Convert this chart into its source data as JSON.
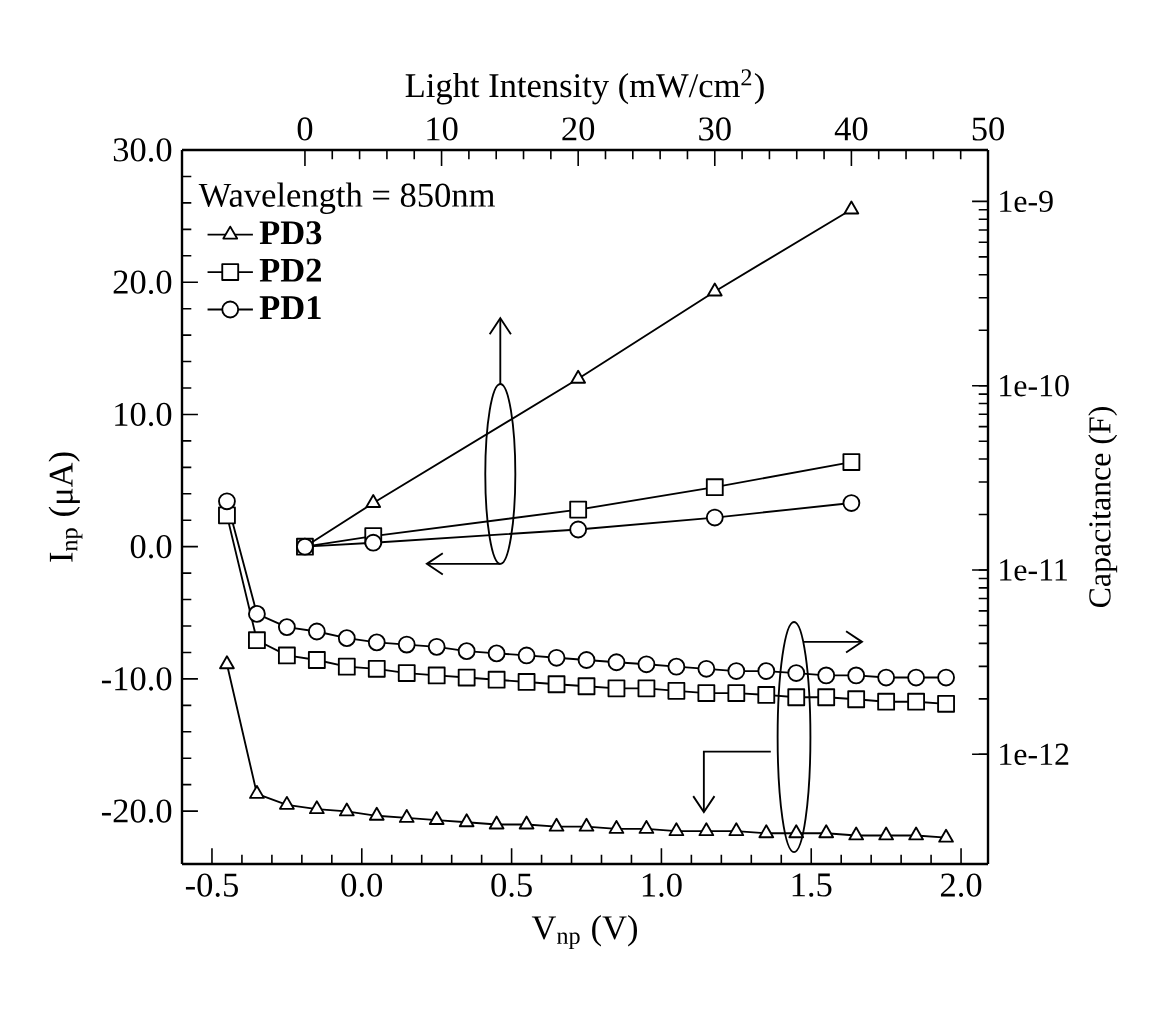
{
  "chart_data": {
    "type": "line",
    "x2label": "Light Intensity (mW/cm$^{2}$)",
    "xlabel": "V$_{np}$ (V)",
    "ylabel": "I$_{np}$ (μA)",
    "y2label": "Capacitance (F)",
    "legend_title": "Wavelength = 850nm",
    "legend": "top left",
    "line_style": "solid",
    "xlim": [
      -0.6,
      2.09
    ],
    "xticks": [
      {
        "value": -0.5,
        "label": "-0.5"
      },
      {
        "value": 0,
        "label": "0.0"
      },
      {
        "value": 0.5,
        "label": "0.5"
      },
      {
        "value": 1,
        "label": "1.0"
      },
      {
        "value": 1.5,
        "label": "1.5"
      },
      {
        "value": 2,
        "label": "2.0"
      }
    ],
    "x2lim": [
      -9,
      50
    ],
    "x2ticks": [
      0,
      10,
      20,
      30,
      40,
      50
    ],
    "ylim": [
      -24,
      30
    ],
    "yticks": [
      {
        "value": -20,
        "label": "-20.0"
      },
      {
        "value": -10,
        "label": "-10.0"
      },
      {
        "value": 0,
        "label": "0.0"
      },
      {
        "value": 10,
        "label": "10.0"
      },
      {
        "value": 20,
        "label": "20.0"
      },
      {
        "value": 30,
        "label": "30.0"
      }
    ],
    "log": "y2",
    "y2lim": [
      2.54e-13,
      1.9e-09
    ],
    "y2ticks": [
      {
        "value": 1e-12,
        "label": "1e-12"
      },
      {
        "value": 1e-11,
        "label": "1e-11"
      },
      {
        "value": 1e-10,
        "label": "1e-10"
      },
      {
        "value": 1e-09,
        "label": "1e-9"
      }
    ],
    "series": [
      {
        "name": "PD3",
        "color": "#000000",
        "marker": "triangle",
        "axis": "x2",
        "x": [
          0,
          5,
          20,
          30,
          40
        ],
        "values": [
          0,
          3.3,
          12.7,
          19.3,
          25.5
        ]
      },
      {
        "name": "PD2",
        "color": "#000000",
        "marker": "square",
        "axis": "x2",
        "x": [
          0,
          5,
          20,
          30,
          40
        ],
        "values": [
          0,
          0.8,
          2.8,
          4.5,
          6.4
        ]
      },
      {
        "name": "PD1",
        "color": "#000000",
        "marker": "circle",
        "axis": "x2",
        "x": [
          0,
          5,
          20,
          30,
          40
        ],
        "values": [
          0,
          0.3,
          1.3,
          2.2,
          3.3
        ]
      },
      {
        "color": "#000000",
        "marker": "triangle",
        "axis": "y2",
        "x": [
          -0.45,
          -0.35,
          -0.25,
          -0.15,
          -0.05,
          0.05,
          0.15,
          0.25,
          0.35,
          0.45,
          0.55,
          0.65,
          0.75,
          0.85,
          0.95,
          1.05,
          1.15,
          1.25,
          1.35,
          1.45,
          1.55,
          1.65,
          1.75,
          1.85,
          1.95
        ],
        "values": [
          3.08e-12,
          6.1e-13,
          5.32e-13,
          5.04e-13,
          4.9e-13,
          4.64e-13,
          4.52e-13,
          4.4e-13,
          4.28e-13,
          4.16e-13,
          4.16e-13,
          4.05e-13,
          4.05e-13,
          3.94e-13,
          3.94e-13,
          3.83e-13,
          3.83e-13,
          3.83e-13,
          3.73e-13,
          3.73e-13,
          3.73e-13,
          3.63e-13,
          3.63e-13,
          3.63e-13,
          3.53e-13
        ]
      },
      {
        "color": "#000000",
        "marker": "square",
        "axis": "y2",
        "x": [
          -0.45,
          -0.35,
          -0.25,
          -0.15,
          -0.05,
          0.05,
          0.15,
          0.25,
          0.35,
          0.45,
          0.55,
          0.65,
          0.75,
          0.85,
          0.95,
          1.05,
          1.15,
          1.25,
          1.35,
          1.45,
          1.55,
          1.65,
          1.75,
          1.85,
          1.95
        ],
        "values": [
          1.98e-11,
          4.16e-12,
          3.44e-12,
          3.25e-12,
          2.99e-12,
          2.91e-12,
          2.76e-12,
          2.68e-12,
          2.61e-12,
          2.54e-12,
          2.47e-12,
          2.4e-12,
          2.34e-12,
          2.28e-12,
          2.28e-12,
          2.21e-12,
          2.15e-12,
          2.15e-12,
          2.1e-12,
          2.04e-12,
          2.04e-12,
          1.99e-12,
          1.93e-12,
          1.93e-12,
          1.88e-12
        ]
      },
      {
        "color": "#000000",
        "marker": "circle",
        "axis": "y2",
        "x": [
          -0.45,
          -0.35,
          -0.25,
          -0.15,
          -0.05,
          0.05,
          0.15,
          0.25,
          0.35,
          0.45,
          0.55,
          0.65,
          0.75,
          0.85,
          0.95,
          1.05,
          1.15,
          1.25,
          1.35,
          1.45,
          1.55,
          1.65,
          1.75,
          1.85,
          1.95
        ],
        "values": [
          2.36e-11,
          5.78e-12,
          4.9e-12,
          4.64e-12,
          4.27e-12,
          4.05e-12,
          3.94e-12,
          3.83e-12,
          3.63e-12,
          3.53e-12,
          3.44e-12,
          3.34e-12,
          3.25e-12,
          3.16e-12,
          3.08e-12,
          2.99e-12,
          2.91e-12,
          2.83e-12,
          2.83e-12,
          2.76e-12,
          2.68e-12,
          2.68e-12,
          2.61e-12,
          2.61e-12,
          2.61e-12
        ]
      }
    ]
  }
}
